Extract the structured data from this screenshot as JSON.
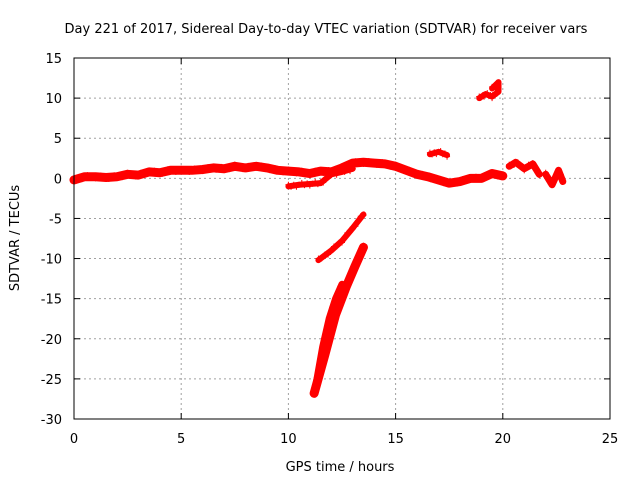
{
  "chart_data": {
    "type": "scatter",
    "title": "Day 221 of 2017, Sidereal Day-to-day VTEC variation (SDTVAR) for receiver vars",
    "xlabel": "GPS time / hours",
    "ylabel": "SDTVAR / TECUs",
    "xlim": [
      0,
      25
    ],
    "ylim": [
      -30,
      15
    ],
    "xticks": [
      0,
      5,
      10,
      15,
      20,
      25
    ],
    "yticks": [
      -30,
      -25,
      -20,
      -15,
      -10,
      -5,
      0,
      5,
      10,
      15
    ],
    "grid": true,
    "marker": "plus",
    "color": "#ff0000",
    "series": [
      {
        "name": "main-band",
        "points": [
          [
            0.0,
            -0.2
          ],
          [
            0.5,
            0.2
          ],
          [
            1.0,
            0.2
          ],
          [
            1.5,
            0.1
          ],
          [
            2.0,
            0.2
          ],
          [
            2.5,
            0.5
          ],
          [
            3.0,
            0.4
          ],
          [
            3.5,
            0.8
          ],
          [
            4.0,
            0.7
          ],
          [
            4.5,
            1.0
          ],
          [
            5.0,
            1.0
          ],
          [
            5.5,
            1.0
          ],
          [
            6.0,
            1.1
          ],
          [
            6.5,
            1.3
          ],
          [
            7.0,
            1.2
          ],
          [
            7.5,
            1.5
          ],
          [
            8.0,
            1.3
          ],
          [
            8.5,
            1.5
          ],
          [
            9.0,
            1.3
          ],
          [
            9.5,
            1.0
          ],
          [
            10.0,
            0.9
          ],
          [
            10.5,
            0.8
          ],
          [
            11.0,
            0.6
          ],
          [
            11.5,
            0.9
          ],
          [
            12.0,
            0.8
          ],
          [
            12.5,
            1.3
          ],
          [
            13.0,
            1.9
          ],
          [
            13.5,
            2.0
          ],
          [
            14.0,
            1.9
          ],
          [
            14.5,
            1.8
          ],
          [
            15.0,
            1.5
          ],
          [
            15.5,
            1.0
          ],
          [
            16.0,
            0.5
          ],
          [
            16.5,
            0.2
          ],
          [
            17.0,
            -0.2
          ],
          [
            17.5,
            -0.6
          ],
          [
            18.0,
            -0.4
          ],
          [
            18.5,
            0.0
          ],
          [
            19.0,
            0.0
          ],
          [
            19.5,
            0.6
          ],
          [
            20.0,
            0.3
          ]
        ]
      },
      {
        "name": "cluster-20.5",
        "points": [
          [
            20.3,
            1.5
          ],
          [
            20.6,
            2.0
          ],
          [
            21.0,
            1.2
          ],
          [
            21.4,
            1.8
          ],
          [
            21.7,
            0.5
          ]
        ]
      },
      {
        "name": "cluster-22.5",
        "points": [
          [
            22.0,
            0.5
          ],
          [
            22.3,
            -0.8
          ],
          [
            22.6,
            1.0
          ],
          [
            22.8,
            -0.4
          ]
        ]
      },
      {
        "name": "upper-cluster",
        "points": [
          [
            18.9,
            10.0
          ],
          [
            19.2,
            10.5
          ],
          [
            19.5,
            10.2
          ],
          [
            19.8,
            10.8
          ],
          [
            19.8,
            12.0
          ],
          [
            19.5,
            11.2
          ]
        ]
      },
      {
        "name": "cluster-17",
        "points": [
          [
            16.6,
            3.0
          ],
          [
            17.0,
            3.3
          ],
          [
            17.4,
            2.9
          ]
        ]
      },
      {
        "name": "dip-10",
        "points": [
          [
            10.0,
            -1.0
          ],
          [
            10.5,
            -0.8
          ],
          [
            11.0,
            -0.7
          ],
          [
            11.5,
            -0.6
          ],
          [
            12.0,
            0.5
          ],
          [
            12.5,
            0.8
          ],
          [
            13.0,
            1.2
          ]
        ]
      },
      {
        "name": "descending-arc",
        "points": [
          [
            11.4,
            -10.2
          ],
          [
            12.0,
            -9.0
          ],
          [
            12.5,
            -7.8
          ],
          [
            13.0,
            -6.2
          ],
          [
            13.5,
            -4.5
          ]
        ]
      },
      {
        "name": "long-steep-arc",
        "points": [
          [
            11.2,
            -26.8
          ],
          [
            11.7,
            -22.0
          ],
          [
            12.2,
            -17.0
          ],
          [
            12.7,
            -13.5
          ],
          [
            13.1,
            -11.0
          ],
          [
            13.5,
            -8.6
          ]
        ]
      },
      {
        "name": "short-steep-arc",
        "points": [
          [
            11.3,
            -25.5
          ],
          [
            11.6,
            -21.0
          ],
          [
            11.9,
            -17.5
          ],
          [
            12.2,
            -15.0
          ],
          [
            12.5,
            -13.2
          ]
        ]
      }
    ]
  }
}
